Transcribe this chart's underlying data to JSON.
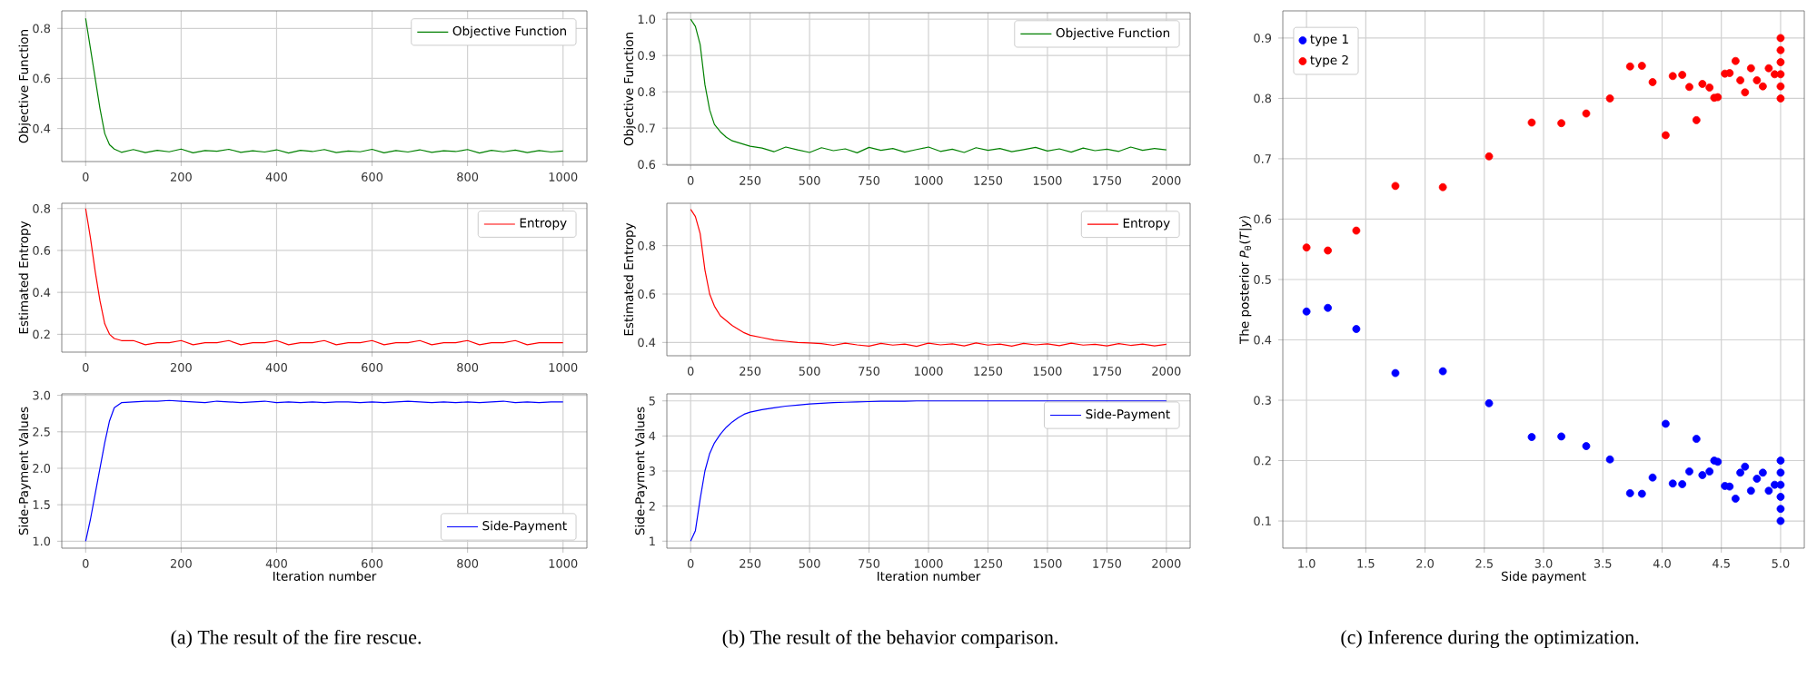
{
  "chart_data": [
    {
      "type": "line",
      "ylabel": "Objective Function",
      "xlim": [
        -50,
        1050
      ],
      "ylim": [
        0.268,
        0.87
      ],
      "xticks": [
        0,
        200,
        400,
        600,
        800,
        1000
      ],
      "yticks": [
        0.4,
        0.6,
        0.8
      ],
      "grid": true,
      "legend": "top right",
      "x": [
        0,
        10,
        20,
        30,
        40,
        50,
        60,
        75,
        100,
        125,
        150,
        175,
        200,
        225,
        250,
        275,
        300,
        325,
        350,
        375,
        400,
        425,
        450,
        475,
        500,
        525,
        550,
        575,
        600,
        625,
        650,
        675,
        700,
        725,
        750,
        775,
        800,
        825,
        850,
        875,
        900,
        925,
        950,
        975,
        1000
      ],
      "series": [
        {
          "name": "Objective Function",
          "color": "#008000",
          "values": [
            0.84,
            0.72,
            0.6,
            0.48,
            0.38,
            0.335,
            0.318,
            0.305,
            0.316,
            0.304,
            0.313,
            0.307,
            0.318,
            0.303,
            0.312,
            0.309,
            0.317,
            0.305,
            0.311,
            0.306,
            0.315,
            0.302,
            0.313,
            0.308,
            0.316,
            0.304,
            0.31,
            0.307,
            0.317,
            0.303,
            0.312,
            0.306,
            0.315,
            0.305,
            0.311,
            0.308,
            0.316,
            0.302,
            0.313,
            0.307,
            0.314,
            0.304,
            0.312,
            0.306,
            0.31
          ]
        }
      ]
    },
    {
      "type": "line",
      "ylabel": "Estimated Entropy",
      "xlim": [
        -50,
        1050
      ],
      "ylim": [
        0.115,
        0.825
      ],
      "xticks": [
        0,
        200,
        400,
        600,
        800,
        1000
      ],
      "yticks": [
        0.2,
        0.4,
        0.6,
        0.8
      ],
      "grid": true,
      "legend": "top right",
      "x": [
        0,
        10,
        20,
        30,
        40,
        50,
        60,
        75,
        100,
        125,
        150,
        175,
        200,
        225,
        250,
        275,
        300,
        325,
        350,
        375,
        400,
        425,
        450,
        475,
        500,
        525,
        550,
        575,
        600,
        625,
        650,
        675,
        700,
        725,
        750,
        775,
        800,
        825,
        850,
        875,
        900,
        925,
        950,
        975,
        1000
      ],
      "series": [
        {
          "name": "Entropy",
          "color": "#ff0000",
          "values": [
            0.8,
            0.66,
            0.5,
            0.36,
            0.25,
            0.2,
            0.18,
            0.17,
            0.17,
            0.15,
            0.16,
            0.16,
            0.17,
            0.15,
            0.16,
            0.16,
            0.17,
            0.15,
            0.16,
            0.16,
            0.17,
            0.15,
            0.16,
            0.16,
            0.17,
            0.15,
            0.16,
            0.16,
            0.17,
            0.15,
            0.16,
            0.16,
            0.17,
            0.15,
            0.16,
            0.16,
            0.17,
            0.15,
            0.16,
            0.16,
            0.17,
            0.15,
            0.16,
            0.16,
            0.16
          ]
        }
      ]
    },
    {
      "type": "line",
      "xlabel": "Iteration number",
      "ylabel": "Side-Payment Values",
      "xlim": [
        -50,
        1050
      ],
      "ylim": [
        0.905,
        3.02
      ],
      "xticks": [
        0,
        200,
        400,
        600,
        800,
        1000
      ],
      "yticks": [
        {
          "value": 1,
          "label": "1.0"
        },
        1.5,
        {
          "value": 2,
          "label": "2.0"
        },
        2.5,
        {
          "value": 3,
          "label": "3.0"
        }
      ],
      "grid": true,
      "legend": "bottom right",
      "annotations": [
        "(a) The result of the fire rescue."
      ],
      "x": [
        0,
        10,
        20,
        30,
        40,
        50,
        60,
        75,
        100,
        125,
        150,
        175,
        200,
        225,
        250,
        275,
        300,
        325,
        350,
        375,
        400,
        425,
        450,
        475,
        500,
        525,
        550,
        575,
        600,
        625,
        650,
        675,
        700,
        725,
        750,
        775,
        800,
        825,
        850,
        875,
        900,
        925,
        950,
        975,
        1000
      ],
      "series": [
        {
          "name": "Side-Payment",
          "color": "#0000ff",
          "values": [
            1.0,
            1.3,
            1.65,
            2.0,
            2.35,
            2.65,
            2.83,
            2.9,
            2.91,
            2.92,
            2.92,
            2.93,
            2.92,
            2.91,
            2.9,
            2.92,
            2.91,
            2.9,
            2.91,
            2.92,
            2.9,
            2.91,
            2.9,
            2.91,
            2.9,
            2.91,
            2.91,
            2.9,
            2.91,
            2.9,
            2.91,
            2.92,
            2.91,
            2.9,
            2.91,
            2.9,
            2.91,
            2.9,
            2.91,
            2.92,
            2.9,
            2.91,
            2.9,
            2.91,
            2.91
          ]
        }
      ]
    },
    {
      "type": "line",
      "ylabel": "Objective Function",
      "xlim": [
        -100,
        2100
      ],
      "ylim": [
        0.598,
        1.018
      ],
      "xticks": [
        0,
        250,
        500,
        750,
        1000,
        1250,
        1500,
        1750,
        2000
      ],
      "yticks": [
        0.6,
        0.7,
        0.8,
        0.9,
        {
          "value": 1,
          "label": "1.0"
        }
      ],
      "grid": true,
      "legend": "top right",
      "x": [
        0,
        20,
        40,
        60,
        80,
        100,
        125,
        150,
        175,
        200,
        225,
        250,
        300,
        350,
        400,
        450,
        500,
        550,
        600,
        650,
        700,
        750,
        800,
        850,
        900,
        950,
        1000,
        1050,
        1100,
        1150,
        1200,
        1250,
        1300,
        1350,
        1400,
        1450,
        1500,
        1550,
        1600,
        1650,
        1700,
        1750,
        1800,
        1850,
        1900,
        1950,
        2000
      ],
      "series": [
        {
          "name": "Objective Function",
          "color": "#008000",
          "values": [
            1.0,
            0.98,
            0.93,
            0.82,
            0.75,
            0.71,
            0.69,
            0.675,
            0.665,
            0.66,
            0.655,
            0.65,
            0.645,
            0.635,
            0.648,
            0.64,
            0.633,
            0.646,
            0.638,
            0.643,
            0.632,
            0.647,
            0.639,
            0.644,
            0.634,
            0.641,
            0.648,
            0.636,
            0.642,
            0.633,
            0.646,
            0.639,
            0.644,
            0.635,
            0.641,
            0.647,
            0.637,
            0.643,
            0.634,
            0.645,
            0.638,
            0.642,
            0.636,
            0.648,
            0.639,
            0.644,
            0.64
          ]
        }
      ]
    },
    {
      "type": "line",
      "ylabel": "Estimated Entropy",
      "xlim": [
        -100,
        2100
      ],
      "ylim": [
        0.345,
        0.975
      ],
      "xticks": [
        0,
        250,
        500,
        750,
        1000,
        1250,
        1500,
        1750,
        2000
      ],
      "yticks": [
        0.4,
        0.6,
        0.8
      ],
      "grid": true,
      "legend": "top right",
      "x": [
        0,
        20,
        40,
        60,
        80,
        100,
        125,
        150,
        175,
        200,
        225,
        250,
        300,
        350,
        400,
        450,
        500,
        550,
        600,
        650,
        700,
        750,
        800,
        850,
        900,
        950,
        1000,
        1050,
        1100,
        1150,
        1200,
        1250,
        1300,
        1350,
        1400,
        1450,
        1500,
        1550,
        1600,
        1650,
        1700,
        1750,
        1800,
        1850,
        1900,
        1950,
        2000
      ],
      "series": [
        {
          "name": "Entropy",
          "color": "#ff0000",
          "values": [
            0.95,
            0.92,
            0.85,
            0.7,
            0.6,
            0.55,
            0.51,
            0.49,
            0.47,
            0.455,
            0.44,
            0.43,
            0.42,
            0.41,
            0.405,
            0.4,
            0.398,
            0.395,
            0.388,
            0.397,
            0.39,
            0.385,
            0.396,
            0.389,
            0.393,
            0.384,
            0.397,
            0.39,
            0.394,
            0.386,
            0.398,
            0.389,
            0.393,
            0.385,
            0.396,
            0.39,
            0.394,
            0.387,
            0.397,
            0.389,
            0.392,
            0.386,
            0.395,
            0.388,
            0.393,
            0.386,
            0.392
          ]
        }
      ]
    },
    {
      "type": "line",
      "xlabel": "Iteration number",
      "ylabel": "Side-Payment Values",
      "xlim": [
        -100,
        2100
      ],
      "ylim": [
        0.8,
        5.2
      ],
      "xticks": [
        0,
        250,
        500,
        750,
        1000,
        1250,
        1500,
        1750,
        2000
      ],
      "yticks": [
        1,
        2,
        3,
        4,
        5
      ],
      "grid": true,
      "legend": "top right",
      "annotations": [
        "(b) The result of the behavior comparison."
      ],
      "x": [
        0,
        20,
        40,
        60,
        80,
        100,
        125,
        150,
        175,
        200,
        225,
        250,
        300,
        350,
        400,
        450,
        500,
        550,
        600,
        650,
        700,
        750,
        800,
        850,
        900,
        950,
        1000,
        1050,
        1100,
        1150,
        1200,
        1250,
        1300,
        1350,
        1400,
        1450,
        1500,
        1550,
        1600,
        1650,
        1700,
        1750,
        1800,
        1850,
        1900,
        1950,
        2000
      ],
      "series": [
        {
          "name": "Side-Payment",
          "color": "#0000ff",
          "values": [
            1.0,
            1.3,
            2.2,
            3.0,
            3.5,
            3.8,
            4.05,
            4.25,
            4.4,
            4.52,
            4.62,
            4.68,
            4.75,
            4.8,
            4.85,
            4.88,
            4.91,
            4.93,
            4.95,
            4.96,
            4.97,
            4.98,
            4.99,
            4.99,
            4.99,
            5.0,
            5.0,
            5.0,
            5.0,
            5.0,
            5.0,
            5.0,
            5.0,
            5.0,
            5.0,
            5.0,
            5.0,
            5.0,
            5.0,
            5.0,
            5.0,
            5.0,
            5.0,
            5.0,
            5.0,
            5.0,
            5.0
          ]
        }
      ]
    },
    {
      "type": "scatter",
      "xlabel": "Side payment",
      "ylabel": "The posterior *P*$_{θ}$(*T*|*y*)",
      "xlim": [
        0.8,
        5.2
      ],
      "ylim": [
        0.055,
        0.945
      ],
      "xticks": [
        {
          "value": 1,
          "label": "1.0"
        },
        1.5,
        {
          "value": 2,
          "label": "2.0"
        },
        2.5,
        {
          "value": 3,
          "label": "3.0"
        },
        3.5,
        {
          "value": 4,
          "label": "4.0"
        },
        4.5,
        {
          "value": 5,
          "label": "5.0"
        }
      ],
      "yticks": [
        0.1,
        0.2,
        0.3,
        0.4,
        0.5,
        0.6,
        0.7,
        0.8,
        0.9
      ],
      "grid": true,
      "legend": "top left",
      "marker": "circle",
      "annotations": [
        "(c) Inference during the optimization."
      ],
      "x": [
        1.0,
        1.18,
        1.42,
        1.75,
        2.15,
        2.54,
        2.9,
        3.15,
        3.36,
        3.56,
        3.73,
        3.83,
        3.92,
        4.03,
        4.09,
        4.17,
        4.23,
        4.29,
        4.34,
        4.4,
        4.44,
        4.47,
        4.53,
        4.57,
        4.62,
        4.66,
        4.7,
        4.75,
        4.8,
        4.85,
        4.9,
        4.95,
        5.0,
        5.0,
        5.0,
        5.0,
        5.0,
        5.0
      ],
      "series": [
        {
          "name": "type 1",
          "color": "#0000ff",
          "values": [
            0.447,
            0.453,
            0.418,
            0.345,
            0.348,
            0.295,
            0.239,
            0.24,
            0.224,
            0.202,
            0.146,
            0.145,
            0.172,
            0.261,
            0.162,
            0.161,
            0.182,
            0.236,
            0.176,
            0.182,
            0.2,
            0.198,
            0.158,
            0.157,
            0.137,
            0.18,
            0.19,
            0.15,
            0.17,
            0.18,
            0.15,
            0.16,
            0.1,
            0.12,
            0.14,
            0.16,
            0.18,
            0.2
          ]
        },
        {
          "name": "type 2",
          "color": "#ff0000",
          "values": [
            0.553,
            0.548,
            0.581,
            0.655,
            0.653,
            0.704,
            0.76,
            0.759,
            0.775,
            0.8,
            0.853,
            0.854,
            0.827,
            0.739,
            0.837,
            0.839,
            0.819,
            0.764,
            0.824,
            0.818,
            0.801,
            0.802,
            0.841,
            0.842,
            0.862,
            0.83,
            0.81,
            0.85,
            0.83,
            0.82,
            0.85,
            0.84,
            0.8,
            0.82,
            0.84,
            0.86,
            0.88,
            0.9
          ]
        }
      ]
    }
  ]
}
